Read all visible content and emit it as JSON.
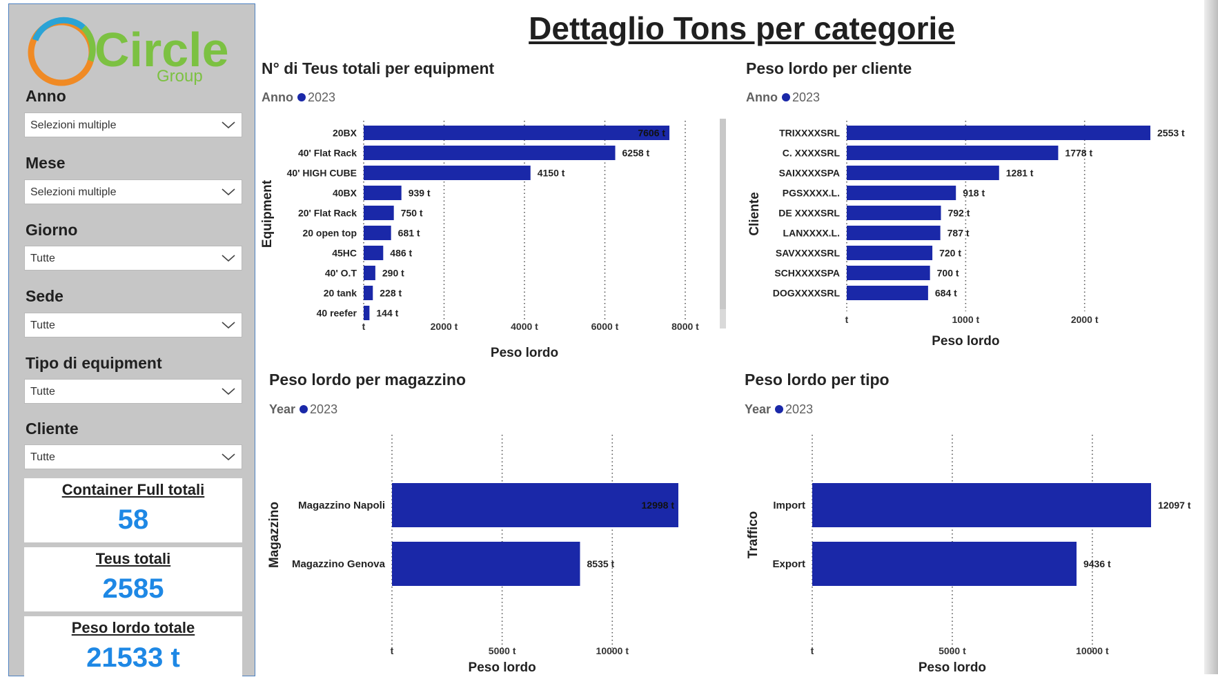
{
  "title": "Dettaglio Tons per categorie",
  "logo": {
    "text": "Circle",
    "sub": "Group"
  },
  "filters": [
    {
      "label": "Anno",
      "value": "Selezioni multiple"
    },
    {
      "label": "Mese",
      "value": "Selezioni multiple"
    },
    {
      "label": "Giorno",
      "value": "Tutte"
    },
    {
      "label": "Sede",
      "value": "Tutte"
    },
    {
      "label": "Tipo di equipment",
      "value": "Tutte"
    },
    {
      "label": "Cliente",
      "value": "Tutte"
    }
  ],
  "kpis": [
    {
      "title": "Container Full totali",
      "value": "58"
    },
    {
      "title": "Teus totali",
      "value": "2585"
    },
    {
      "title": "Peso lordo totale",
      "value": "21533 t"
    }
  ],
  "colors": {
    "bar": "#1a28a8",
    "kpi_value": "#1e88e5",
    "sidebar": "#c6c6c6"
  },
  "chart_data": [
    {
      "type": "bar",
      "orientation": "horizontal",
      "title": "N° di Teus totali per equipment",
      "legend_title": "Anno",
      "legend_item": "2023",
      "xlabel": "Peso lordo",
      "ylabel": "Equipment",
      "unit": "t",
      "xlim": [
        0,
        8000
      ],
      "ticks": [
        "t",
        "2000 t",
        "4000 t",
        "6000 t",
        "8000 t"
      ],
      "categories": [
        "20BX",
        "40' Flat Rack",
        "40' HIGH CUBE",
        "40BX",
        "20' Flat Rack",
        "20 open top",
        "45HC",
        "40' O.T",
        "20 tank",
        "40 reefer"
      ],
      "values": [
        7606,
        6258,
        4150,
        939,
        750,
        681,
        486,
        290,
        228,
        144
      ],
      "labels": [
        "7606 t",
        "6258 t",
        "4150 t",
        "939 t",
        "750 t",
        "681 t",
        "486 t",
        "290 t",
        "228 t",
        "144 t"
      ]
    },
    {
      "type": "bar",
      "orientation": "horizontal",
      "title": "Peso lordo per cliente",
      "legend_title": "Anno",
      "legend_item": "2023",
      "xlabel": "Peso lordo",
      "ylabel": "Cliente",
      "unit": "t",
      "xlim": [
        0,
        2553
      ],
      "ticks": [
        "t",
        "1000 t",
        "2000 t"
      ],
      "categories": [
        "TRIXXXXSRL",
        "C. XXXXSRL",
        "SAIXXXXSPA",
        "PGSXXXX.L.",
        "DE XXXXSRL",
        "LANXXXX.L.",
        "SAVXXXXSRL",
        "SCHXXXXSPA",
        "DOGXXXXSRL"
      ],
      "values": [
        2553,
        1778,
        1281,
        918,
        792,
        787,
        720,
        700,
        684
      ],
      "labels": [
        "2553 t",
        "1778 t",
        "1281 t",
        "918 t",
        "792 t",
        "787 t",
        "720 t",
        "700 t",
        "684 t"
      ]
    },
    {
      "type": "bar",
      "orientation": "horizontal",
      "title": "Peso lordo per magazzino",
      "legend_title": "Year",
      "legend_item": "2023",
      "xlabel": "Peso lordo",
      "ylabel": "Magazzino",
      "unit": "t",
      "xlim": [
        0,
        12998
      ],
      "ticks": [
        "t",
        "5000 t",
        "10000 t"
      ],
      "categories": [
        "Magazzino Napoli",
        "Magazzino Genova"
      ],
      "values": [
        12998,
        8535
      ],
      "labels": [
        "12998 t",
        "8535 t"
      ]
    },
    {
      "type": "bar",
      "orientation": "horizontal",
      "title": "Peso lordo per tipo",
      "legend_title": "Year",
      "legend_item": "2023",
      "xlabel": "Peso lordo",
      "ylabel": "Traffico",
      "unit": "t",
      "xlim": [
        0,
        12097
      ],
      "ticks": [
        "t",
        "5000 t",
        "10000 t"
      ],
      "categories": [
        "Import",
        "Export"
      ],
      "values": [
        12097,
        9436
      ],
      "labels": [
        "12097 t",
        "9436 t"
      ]
    }
  ]
}
